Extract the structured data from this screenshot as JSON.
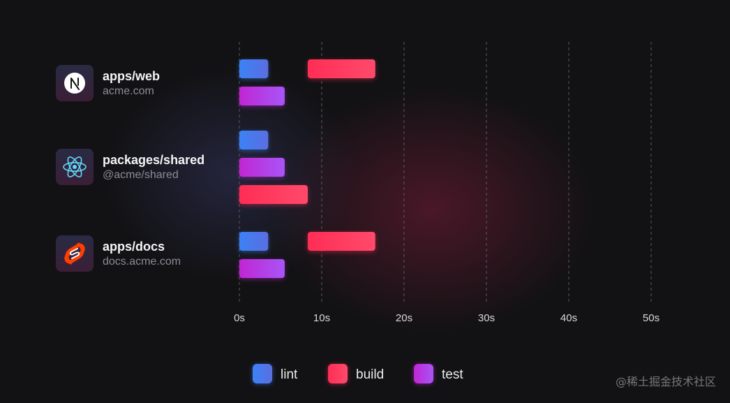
{
  "chart_data": {
    "type": "bar",
    "orientation": "horizontal",
    "title": "",
    "xlabel": "",
    "ylabel": "",
    "xlim": [
      0,
      50
    ],
    "x_ticks": [
      0,
      10,
      20,
      30,
      40,
      50
    ],
    "x_tick_labels": [
      "0s",
      "10s",
      "20s",
      "30s",
      "40s",
      "50s"
    ],
    "grid": "vertical-dashed",
    "legend": {
      "placement": "bottom-center",
      "entries": [
        {
          "key": "lint",
          "label": "lint",
          "color": "#3b82f6",
          "color_end": "#5b6ee0"
        },
        {
          "key": "build",
          "label": "build",
          "color": "#ff2d55",
          "color_end": "#ff4a6b"
        },
        {
          "key": "test",
          "label": "test",
          "color": "#c026d3",
          "color_end": "#a855f7"
        }
      ]
    },
    "projects": [
      {
        "name": "apps/web",
        "subtitle": "acme.com",
        "icon": "nextjs-icon",
        "tasks": [
          {
            "task": "lint",
            "start": 0,
            "end": 3.5
          },
          {
            "task": "build",
            "start": 8.3,
            "end": 16.5
          },
          {
            "task": "test",
            "start": 0,
            "end": 5.5
          }
        ]
      },
      {
        "name": "packages/shared",
        "subtitle": "@acme/shared",
        "icon": "react-icon",
        "tasks": [
          {
            "task": "lint",
            "start": 0,
            "end": 3.5
          },
          {
            "task": "test",
            "start": 0,
            "end": 5.5
          },
          {
            "task": "build",
            "start": 0,
            "end": 8.3
          }
        ]
      },
      {
        "name": "apps/docs",
        "subtitle": "docs.acme.com",
        "icon": "svelte-icon",
        "tasks": [
          {
            "task": "lint",
            "start": 0,
            "end": 3.5
          },
          {
            "task": "build",
            "start": 8.3,
            "end": 16.5
          },
          {
            "task": "test",
            "start": 0,
            "end": 5.5
          }
        ]
      }
    ]
  },
  "watermark": "@稀土掘金技术社区"
}
